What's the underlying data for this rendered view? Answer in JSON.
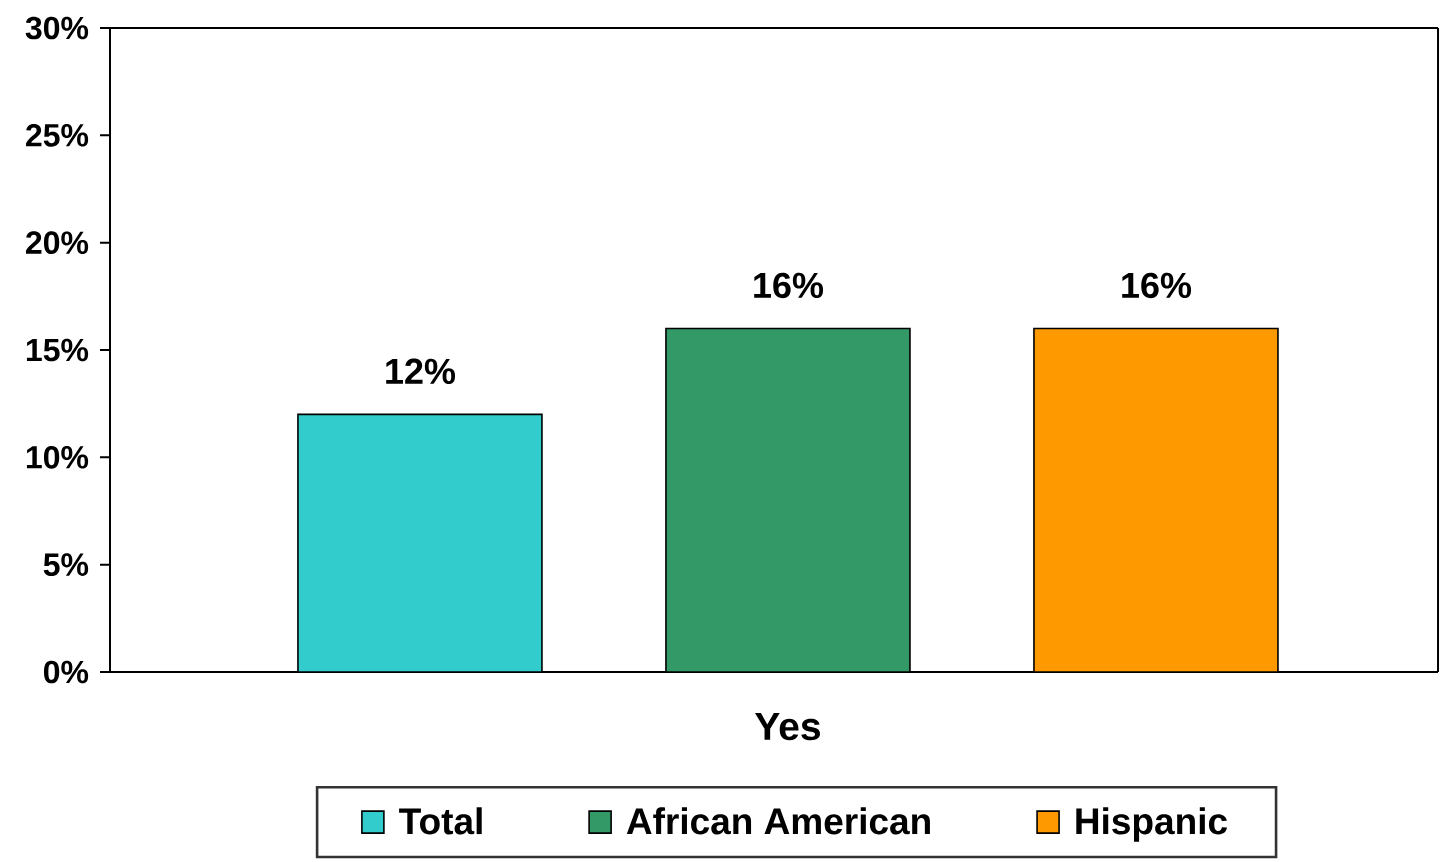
{
  "chart_data": {
    "type": "bar",
    "categories": [
      "Yes"
    ],
    "series": [
      {
        "name": "Total",
        "color": "#33cccc",
        "values": [
          12
        ],
        "value_labels": [
          "12%"
        ]
      },
      {
        "name": "African American",
        "color": "#339966",
        "values": [
          16
        ],
        "value_labels": [
          "16%"
        ]
      },
      {
        "name": "Hispanic",
        "color": "#ff9900",
        "values": [
          16
        ],
        "value_labels": [
          "16%"
        ]
      }
    ],
    "ylim": [
      0,
      30
    ],
    "yticks": [
      {
        "value": 0,
        "label": "0%"
      },
      {
        "value": 5,
        "label": "5%"
      },
      {
        "value": 10,
        "label": "10%"
      },
      {
        "value": 15,
        "label": "15%"
      },
      {
        "value": 20,
        "label": "20%"
      },
      {
        "value": 25,
        "label": "25%"
      },
      {
        "value": 30,
        "label": "30%"
      }
    ],
    "legend": "bottom"
  }
}
